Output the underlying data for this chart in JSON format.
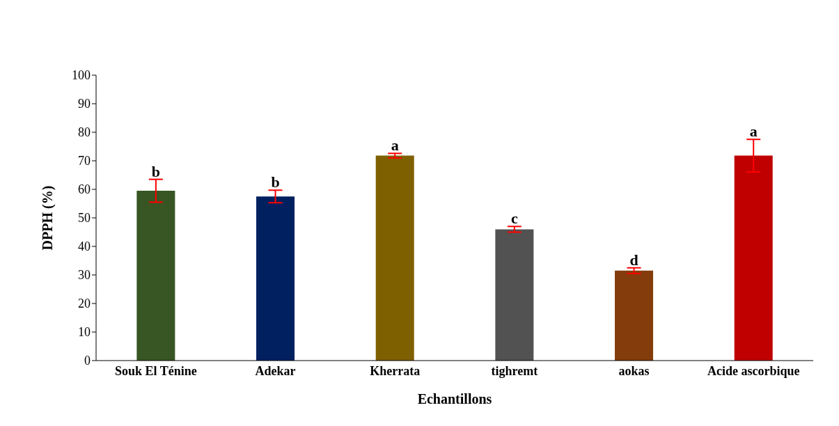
{
  "chart_data": {
    "type": "bar",
    "xlabel": "Echantillons",
    "ylabel": "DPPH (%)",
    "categories": [
      "Souk El Ténine",
      "Adekar",
      "Kherrata",
      "tighremt",
      "aokas",
      "Acide ascorbique"
    ],
    "values": [
      59.5,
      57.5,
      71.8,
      46,
      31.5,
      71.8
    ],
    "colors": [
      "#375623",
      "#002060",
      "#7f6000",
      "#525252",
      "#843c0c",
      "#c00000"
    ],
    "errors": [
      4,
      2.2,
      0.8,
      1,
      1,
      5.7
    ],
    "ylim": [
      0,
      100
    ],
    "yticks": [
      0,
      10,
      20,
      30,
      40,
      50,
      60,
      70,
      80,
      90,
      100
    ],
    "grid": false,
    "legend": false,
    "annotations": [
      {
        "text": "b",
        "x": "Souk El Ténine",
        "y": 63.5
      },
      {
        "text": "b",
        "x": "Adekar",
        "y": 59.7
      },
      {
        "text": "a",
        "x": "Kherrata",
        "y": 72.6
      },
      {
        "text": "c",
        "x": "tighremt",
        "y": 47
      },
      {
        "text": "d",
        "x": "aokas",
        "y": 32.5
      },
      {
        "text": "a",
        "x": "Acide ascorbique",
        "y": 77.5
      }
    ]
  }
}
